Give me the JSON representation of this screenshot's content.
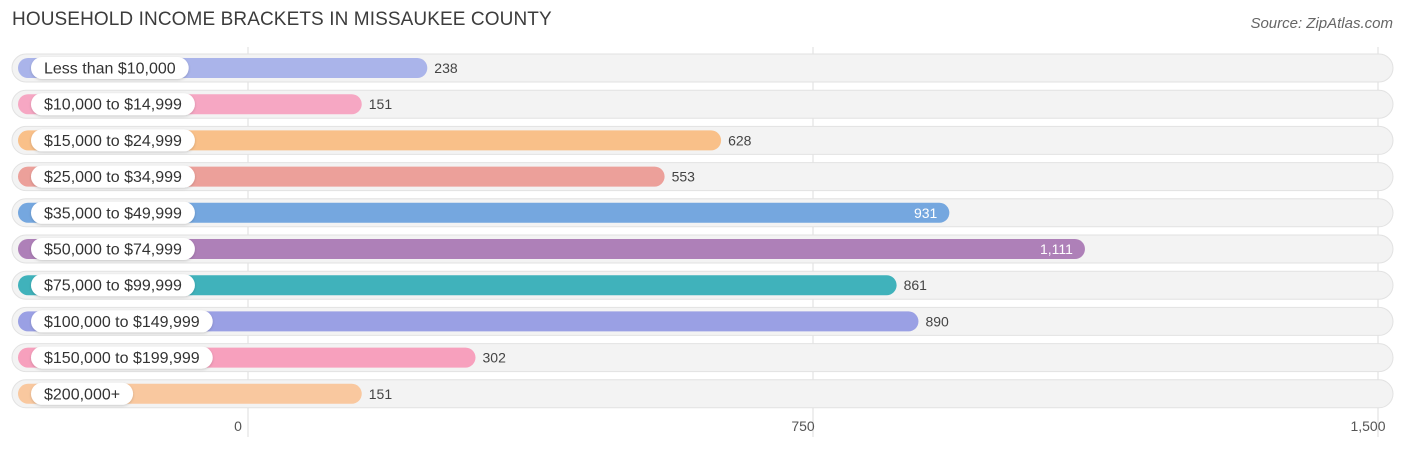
{
  "title": "HOUSEHOLD INCOME BRACKETS IN MISSAUKEE COUNTY",
  "source": "Source: ZipAtlas.com",
  "chart_data": {
    "type": "bar",
    "orientation": "horizontal",
    "title": "HOUSEHOLD INCOME BRACKETS IN MISSAUKEE COUNTY",
    "categories": [
      "Less than $10,000",
      "$10,000 to $14,999",
      "$15,000 to $24,999",
      "$25,000 to $34,999",
      "$35,000 to $49,999",
      "$50,000 to $74,999",
      "$75,000 to $99,999",
      "$100,000 to $149,999",
      "$150,000 to $199,999",
      "$200,000+"
    ],
    "values": [
      238,
      151,
      628,
      553,
      931,
      1111,
      861,
      890,
      302,
      151
    ],
    "value_labels": [
      "238",
      "151",
      "628",
      "553",
      "931",
      "1,111",
      "861",
      "890",
      "302",
      "151"
    ],
    "colors": [
      "#aab4ea",
      "#f6a7c3",
      "#f9c089",
      "#eca09a",
      "#75a7df",
      "#ae80b8",
      "#40b2bb",
      "#9aa0e4",
      "#f7a0bd",
      "#f9c89f"
    ],
    "xlim": [
      0,
      1500
    ],
    "xticks": [
      0,
      750,
      1500
    ],
    "xtick_labels": [
      "0",
      "750",
      "1,500"
    ],
    "grid": true
  }
}
